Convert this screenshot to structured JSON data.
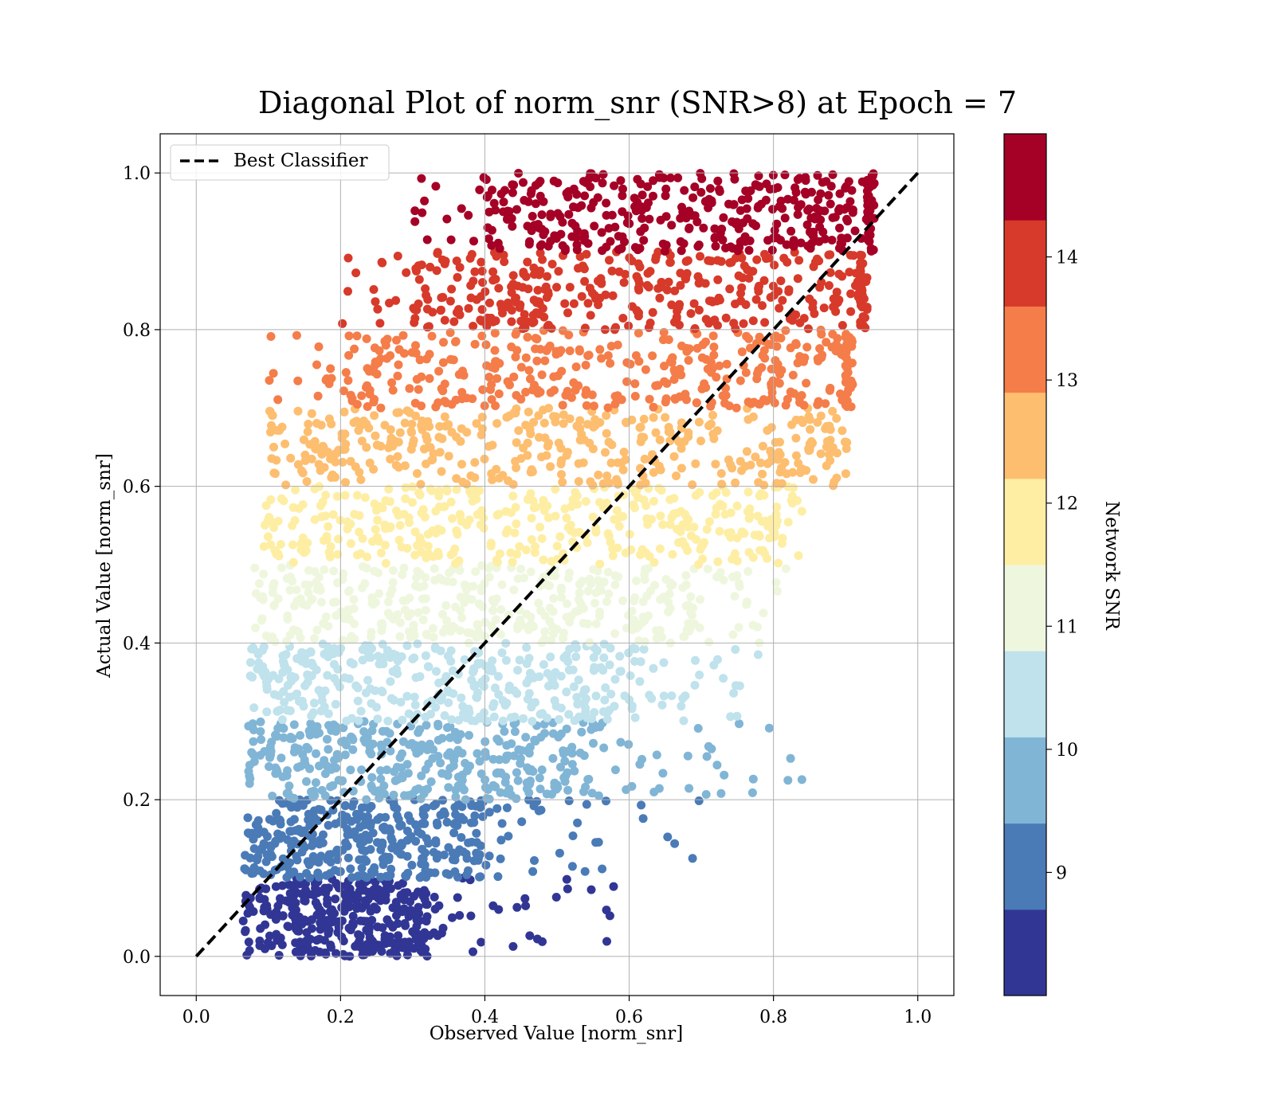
{
  "chart_data": {
    "type": "scatter",
    "title": "Diagonal Plot of norm_snr (SNR>8) at Epoch = 7",
    "xlabel": "Observed Value [norm_snr]",
    "ylabel": "Actual Value [norm_snr]",
    "xlim": [
      -0.05,
      1.05
    ],
    "ylim": [
      -0.05,
      1.05
    ],
    "x_ticks": [
      "0.0",
      "0.2",
      "0.4",
      "0.6",
      "0.8",
      "1.0"
    ],
    "y_ticks": [
      "0.0",
      "0.2",
      "0.4",
      "0.6",
      "0.8",
      "1.0"
    ],
    "grid": true,
    "legend": {
      "placement": "upper-left",
      "entries": [
        "Best Classifier"
      ]
    },
    "reference_line": {
      "name": "Best Classifier",
      "style": "dashed",
      "color": "#000000",
      "x": [
        0.0,
        1.0
      ],
      "y": [
        0.0,
        1.0
      ]
    },
    "colorbar": {
      "label": "Network SNR",
      "range": [
        8,
        15
      ],
      "tick_labels": [
        "9",
        "10",
        "11",
        "12",
        "13",
        "14"
      ],
      "tick_values": [
        9,
        10,
        11,
        12,
        13,
        14
      ],
      "bands": [
        {
          "from": 8.0,
          "to": 8.7,
          "color": "#313695"
        },
        {
          "from": 8.7,
          "to": 9.4,
          "color": "#4a7bb7"
        },
        {
          "from": 9.4,
          "to": 10.1,
          "color": "#81b5d6"
        },
        {
          "from": 10.1,
          "to": 10.8,
          "color": "#bfe2ec"
        },
        {
          "from": 10.8,
          "to": 11.5,
          "color": "#eef7de"
        },
        {
          "from": 11.5,
          "to": 12.2,
          "color": "#feeea4"
        },
        {
          "from": 12.2,
          "to": 12.9,
          "color": "#fdbe70"
        },
        {
          "from": 12.9,
          "to": 13.6,
          "color": "#f47d4a"
        },
        {
          "from": 13.6,
          "to": 14.3,
          "color": "#d73a2a"
        },
        {
          "from": 14.3,
          "to": 15.0,
          "color": "#a50026"
        }
      ]
    },
    "series": [
      {
        "y_range": [
          0.0,
          0.1
        ],
        "color": "#313695",
        "dense_x": [
          0.065,
          0.32
        ],
        "sparse_x_max": 0.62
      },
      {
        "y_range": [
          0.1,
          0.2
        ],
        "color": "#4a7bb7",
        "dense_x": [
          0.065,
          0.4
        ],
        "sparse_x_max": 0.7
      },
      {
        "y_range": [
          0.2,
          0.3
        ],
        "color": "#81b5d6",
        "dense_x": [
          0.07,
          0.55
        ],
        "sparse_x_max": 0.85
      },
      {
        "y_range": [
          0.3,
          0.4
        ],
        "color": "#bfe2ec",
        "dense_x": [
          0.075,
          0.6
        ],
        "sparse_x_max": 0.78
      },
      {
        "y_range": [
          0.4,
          0.5
        ],
        "color": "#eef7de",
        "dense_x": [
          0.08,
          0.68
        ],
        "sparse_x_max": 0.82
      },
      {
        "y_range": [
          0.5,
          0.6
        ],
        "color": "#feeea4",
        "dense_x": [
          0.09,
          0.78
        ],
        "sparse_x_max": 0.84
      },
      {
        "y_range": [
          0.6,
          0.7
        ],
        "color": "#fdbe70",
        "dense_x": [
          0.12,
          0.85
        ],
        "sparse_x_max": 0.91
      },
      {
        "y_range": [
          0.7,
          0.8
        ],
        "color": "#f47d4a",
        "dense_x": [
          0.2,
          0.9
        ],
        "sparse_x_max": 0.91
      },
      {
        "y_range": [
          0.8,
          0.9
        ],
        "color": "#d73a2a",
        "dense_x": [
          0.3,
          0.92
        ],
        "sparse_x_max": 0.93
      },
      {
        "y_range": [
          0.9,
          1.0
        ],
        "color": "#a50026",
        "dense_x": [
          0.4,
          0.93
        ],
        "sparse_x_max": 0.94
      }
    ]
  }
}
